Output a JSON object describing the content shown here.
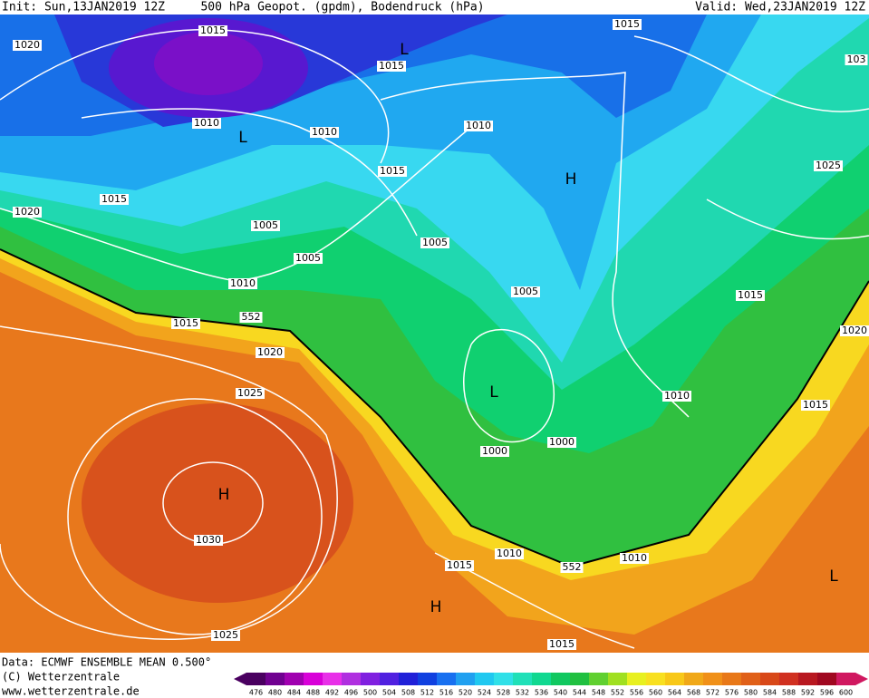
{
  "header": {
    "init": "Init: Sun,13JAN2019 12Z",
    "title": "500 hPa Geopot. (gpdm), Bodendruck (hPa)",
    "valid": "Valid: Wed,23JAN2019 12Z"
  },
  "map": {
    "isobar_labels": [
      "1015",
      "1015",
      "1015",
      "103",
      "1020",
      "1010",
      "1010",
      "1010",
      "1015",
      "1025",
      "1015",
      "1020",
      "1005",
      "1005",
      "1005",
      "1010",
      "1005",
      "1015",
      "1015",
      "552",
      "1020",
      "1020",
      "1025",
      "1010",
      "1015",
      "1000",
      "1000",
      "1030",
      "1010",
      "1010",
      "1015",
      "552",
      "1025",
      "1015"
    ],
    "pressure_centers": [
      "L",
      "L",
      "H",
      "L",
      "H",
      "L",
      "H"
    ]
  },
  "footer": {
    "data": "Data: ECMWF ENSEMBLE MEAN 0.500°",
    "copyright": "(C) Wetterzentrale",
    "url": "www.wetterzentrale.de"
  },
  "colorbar": {
    "values": [
      476,
      480,
      484,
      488,
      492,
      496,
      500,
      504,
      508,
      512,
      516,
      520,
      524,
      528,
      532,
      536,
      540,
      544,
      548,
      552,
      556,
      560,
      564,
      568,
      572,
      576,
      580,
      584,
      588,
      592,
      596,
      600
    ],
    "colors": [
      "#4a0060",
      "#700090",
      "#a000b0",
      "#d800d8",
      "#e830e8",
      "#b030e0",
      "#8020e0",
      "#5020e0",
      "#2020d8",
      "#1040e0",
      "#1870f0",
      "#20a0f0",
      "#20c8f0",
      "#30e0e8",
      "#20e0b8",
      "#10d890",
      "#10c860",
      "#20c040",
      "#60d030",
      "#a0e020",
      "#e8f020",
      "#f8e020",
      "#f8c818",
      "#f0a818",
      "#f09018",
      "#e87818",
      "#e06018",
      "#d84818",
      "#d03020",
      "#b81820",
      "#a00820",
      "#d01860"
    ]
  }
}
